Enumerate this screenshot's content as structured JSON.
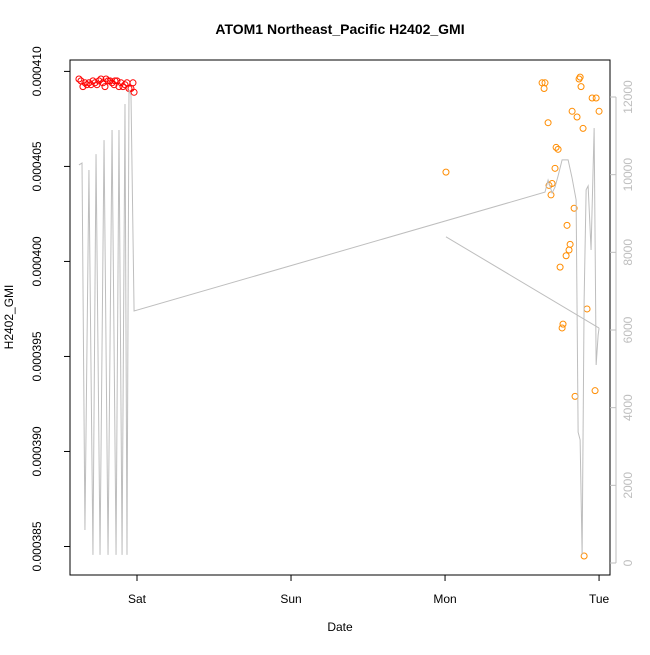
{
  "chart_data": {
    "type": "scatter",
    "title": "ATOM1 Northeast_Pacific H2402_GMI",
    "xlabel": "Date",
    "ylabel": "H2402_GMI",
    "xlim": [
      -0.435,
      3.071
    ],
    "xticks": [
      {
        "value": 0,
        "label": "Sat"
      },
      {
        "value": 1,
        "label": "Sun"
      },
      {
        "value": 2,
        "label": "Mon"
      },
      {
        "value": 3,
        "label": "Tue"
      }
    ],
    "ylim": [
      0.0003835,
      0.0004106
    ],
    "yticks": [
      0.000385,
      {
        "value": 0.00039,
        "label": "0.000390"
      },
      0.000395,
      {
        "value": 0.0004,
        "label": "0.000400"
      },
      0.000405,
      {
        "value": 0.00041,
        "label": "0.000410"
      }
    ],
    "y2lim": [
      -309,
      12953
    ],
    "y2ticks": [
      0,
      2000,
      4000,
      6000,
      8000,
      10000,
      12000
    ],
    "y2color": "#bebebe",
    "series": [
      {
        "color": "#ff0000",
        "x": [
          -0.377,
          -0.364,
          -0.351,
          -0.338,
          -0.325,
          -0.312,
          -0.299,
          -0.286,
          -0.273,
          -0.26,
          -0.247,
          -0.234,
          -0.221,
          -0.208,
          -0.201,
          -0.188,
          -0.175,
          -0.162,
          -0.149,
          -0.143,
          -0.13,
          -0.117,
          -0.104,
          -0.091,
          -0.078,
          -0.065,
          -0.052,
          -0.039,
          -0.026,
          -0.019
        ],
        "values": [
          0.0004096,
          0.0004095,
          0.0004092,
          0.0004094,
          0.0004093,
          0.0004094,
          0.0004093,
          0.0004095,
          0.0004094,
          0.0004093,
          0.0004095,
          0.0004096,
          0.0004094,
          0.0004092,
          0.0004096,
          0.0004095,
          0.0004095,
          0.0004094,
          0.0004093,
          0.0004095,
          0.0004095,
          0.0004092,
          0.0004094,
          0.0004092,
          0.0004093,
          0.0004094,
          0.0004091,
          0.0004091,
          0.0004094,
          0.0004089
        ]
      },
      {
        "color": "#ff8c00",
        "x": [
          2.006,
          2.63,
          2.649,
          2.643,
          2.669,
          2.675,
          2.688,
          2.695,
          2.714,
          2.721,
          2.734,
          2.747,
          2.76,
          2.766,
          2.786,
          2.792,
          2.805,
          2.812,
          2.825,
          2.838,
          2.844,
          2.857,
          2.87,
          2.877,
          2.883,
          2.896,
          2.903,
          2.922,
          2.955,
          2.974,
          2.981,
          3.0
        ],
        "values": [
          0.0004047,
          0.0004094,
          0.0004094,
          0.0004091,
          0.0004073,
          0.000404,
          0.0004035,
          0.0004041,
          0.0004049,
          0.000406,
          0.0004059,
          0.0003997,
          0.0003965,
          0.0003967,
          0.0004003,
          0.0004019,
          0.0004006,
          0.0004009,
          0.0004079,
          0.0004028,
          0.0003929,
          0.0004076,
          0.0004096,
          0.0004097,
          0.0004092,
          0.000407,
          0.0003845,
          0.0003975,
          0.0004086,
          0.0003932,
          0.0004086,
          0.0004079
        ]
      },
      {
        "color": "#bebebe",
        "axis": "y2",
        "type": "line",
        "x": [
          -0.377,
          -0.357,
          -0.338,
          -0.312,
          -0.286,
          -0.266,
          -0.24,
          -0.214,
          -0.188,
          -0.162,
          -0.136,
          -0.117,
          -0.097,
          -0.078,
          -0.065,
          -0.052,
          -0.039,
          -0.019,
          2.649,
          2.669,
          2.695,
          2.714,
          2.734,
          2.76,
          2.799,
          2.825,
          2.851,
          2.864,
          2.877,
          2.89,
          2.903,
          2.916,
          2.929,
          2.948,
          2.968,
          2.981,
          2.994,
          3.0,
          null,
          2.006,
          3.0
        ],
        "values": [
          10250,
          10300,
          850,
          10120,
          210,
          10530,
          210,
          10890,
          210,
          11150,
          210,
          11150,
          210,
          11820,
          210,
          12180,
          12050,
          6490,
          9550,
          9860,
          9530,
          9680,
          9970,
          10380,
          10380,
          9910,
          9350,
          3370,
          3170,
          210,
          6770,
          9610,
          9710,
          8060,
          11200,
          5100,
          5870,
          6050,
          null,
          8400,
          6050
        ]
      }
    ]
  }
}
